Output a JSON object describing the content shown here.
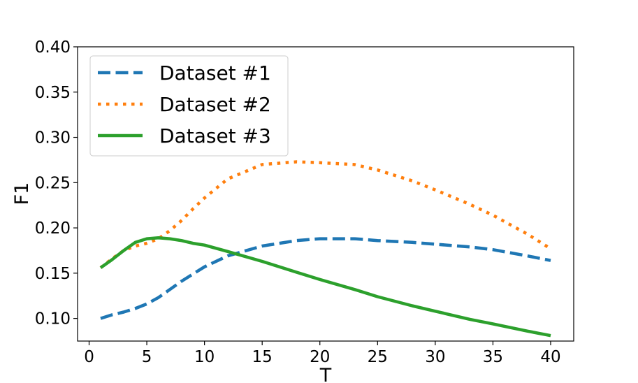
{
  "chart_data": {
    "type": "line",
    "xlabel": "T",
    "ylabel": "F1",
    "xlim": [
      -1,
      42
    ],
    "ylim": [
      0.075,
      0.4
    ],
    "x_ticks": [
      0,
      5,
      10,
      15,
      20,
      25,
      30,
      35,
      40
    ],
    "x_tick_labels": [
      "0",
      "5",
      "10",
      "15",
      "20",
      "25",
      "30",
      "35",
      "40"
    ],
    "y_ticks": [
      0.1,
      0.15,
      0.2,
      0.25,
      0.3,
      0.35,
      0.4
    ],
    "y_tick_labels": [
      "0.10",
      "0.15",
      "0.20",
      "0.25",
      "0.30",
      "0.35",
      "0.40"
    ],
    "grid": false,
    "legend_position": "top-left",
    "x": [
      1,
      2,
      3,
      4,
      5,
      6,
      7,
      8,
      9,
      10,
      12,
      15,
      18,
      20,
      23,
      25,
      28,
      30,
      33,
      35,
      38,
      40
    ],
    "series": [
      {
        "name": "Dataset #1",
        "color": "#1f77b4",
        "style": "dashed",
        "values": [
          0.1,
          0.104,
          0.107,
          0.111,
          0.116,
          0.123,
          0.132,
          0.141,
          0.149,
          0.157,
          0.169,
          0.18,
          0.186,
          0.188,
          0.188,
          0.186,
          0.184,
          0.182,
          0.179,
          0.176,
          0.169,
          0.164
        ]
      },
      {
        "name": "Dataset #2",
        "color": "#ff7f0e",
        "style": "dotted",
        "values": [
          0.156,
          0.166,
          0.175,
          0.18,
          0.183,
          0.188,
          0.197,
          0.208,
          0.221,
          0.233,
          0.254,
          0.27,
          0.273,
          0.272,
          0.27,
          0.264,
          0.252,
          0.242,
          0.226,
          0.214,
          0.193,
          0.177
        ]
      },
      {
        "name": "Dataset #3",
        "color": "#2ca02c",
        "style": "solid",
        "values": [
          0.156,
          0.165,
          0.175,
          0.184,
          0.188,
          0.189,
          0.188,
          0.186,
          0.183,
          0.181,
          0.174,
          0.163,
          0.151,
          0.143,
          0.132,
          0.124,
          0.114,
          0.108,
          0.099,
          0.094,
          0.086,
          0.081
        ]
      }
    ]
  }
}
